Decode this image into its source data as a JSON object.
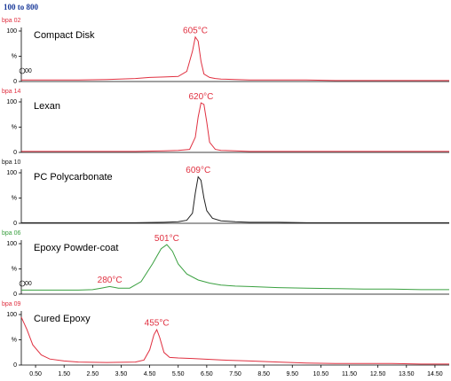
{
  "header": "100 to 800",
  "chart_data": [
    {
      "type": "line",
      "title": "Compact Disk",
      "subtitle": "bpa 02",
      "marker_label": "00",
      "x": [
        0,
        1,
        2,
        3,
        4,
        4.5,
        5,
        5.5,
        5.8,
        6.0,
        6.1,
        6.2,
        6.3,
        6.4,
        6.6,
        6.8,
        7,
        7.5,
        8,
        9,
        10,
        11,
        12,
        13,
        14,
        15
      ],
      "series": [
        {
          "color": "#e03040",
          "values": [
            3,
            3,
            3,
            4,
            6,
            8,
            9,
            10,
            20,
            60,
            88,
            80,
            40,
            15,
            8,
            6,
            5,
            4,
            3,
            3,
            3,
            2,
            2,
            2,
            2,
            2
          ]
        }
      ],
      "annotations": [
        {
          "text": "605°C",
          "x": 6.1,
          "y": 88
        }
      ],
      "xlim": [
        0,
        15
      ],
      "ylim": [
        0,
        100
      ],
      "yticks": [
        0,
        {
          "value": 50,
          "label": "%"
        },
        100
      ]
    },
    {
      "type": "line",
      "title": "Lexan",
      "subtitle": "bpa 14",
      "x": [
        0,
        1,
        2,
        3,
        4,
        5,
        5.5,
        5.9,
        6.1,
        6.2,
        6.3,
        6.4,
        6.5,
        6.6,
        6.8,
        7,
        7.5,
        8,
        9,
        10,
        11,
        12,
        13,
        14,
        15
      ],
      "series": [
        {
          "color": "#e03040",
          "values": [
            2,
            2,
            2,
            2,
            2,
            3,
            4,
            6,
            30,
            70,
            98,
            95,
            60,
            20,
            6,
            4,
            3,
            2,
            2,
            2,
            2,
            2,
            2,
            2,
            2
          ]
        }
      ],
      "annotations": [
        {
          "text": "620°C",
          "x": 6.3,
          "y": 98
        }
      ],
      "xlim": [
        0,
        15
      ],
      "ylim": [
        0,
        100
      ],
      "yticks": [
        0,
        {
          "value": 50,
          "label": "%"
        },
        100
      ]
    },
    {
      "type": "line",
      "title": "PC Polycarbonate",
      "subtitle": "bpa 10",
      "x": [
        0,
        1,
        2,
        3,
        4,
        5,
        5.5,
        5.8,
        6.0,
        6.1,
        6.2,
        6.3,
        6.4,
        6.5,
        6.7,
        7,
        7.5,
        8,
        9,
        10,
        11,
        12,
        13,
        14,
        15
      ],
      "series": [
        {
          "color": "#202020",
          "values": [
            1,
            1,
            1,
            1,
            1,
            2,
            3,
            6,
            20,
            60,
            92,
            85,
            50,
            25,
            10,
            5,
            3,
            2,
            2,
            1,
            1,
            1,
            1,
            1,
            1
          ]
        }
      ],
      "annotations": [
        {
          "text": "609°C",
          "x": 6.2,
          "y": 92
        }
      ],
      "xlim": [
        0,
        15
      ],
      "ylim": [
        0,
        100
      ],
      "yticks": [
        0,
        {
          "value": 50,
          "label": "%"
        },
        100
      ]
    },
    {
      "type": "line",
      "title": "Epoxy Powder-coat",
      "subtitle": "bpa 06",
      "marker_label": "00",
      "x": [
        0,
        1,
        2,
        2.5,
        2.8,
        3.1,
        3.4,
        3.8,
        4.2,
        4.6,
        4.9,
        5.1,
        5.3,
        5.5,
        5.8,
        6.2,
        6.6,
        7,
        7.5,
        8,
        9,
        10,
        11,
        12,
        13,
        14,
        15
      ],
      "series": [
        {
          "color": "#3aa040",
          "values": [
            8,
            8,
            8,
            9,
            12,
            15,
            12,
            12,
            25,
            60,
            90,
            98,
            85,
            60,
            40,
            28,
            22,
            18,
            16,
            15,
            13,
            12,
            11,
            10,
            10,
            9,
            9
          ]
        }
      ],
      "annotations": [
        {
          "text": "280°C",
          "x": 3.1,
          "y": 15
        },
        {
          "text": "501°C",
          "x": 5.1,
          "y": 98
        }
      ],
      "xlim": [
        0,
        15
      ],
      "ylim": [
        0,
        100
      ],
      "yticks": [
        0,
        {
          "value": 50,
          "label": "%"
        },
        100
      ]
    },
    {
      "type": "line",
      "title": "Cured Epoxy",
      "subtitle": "bpa 09",
      "x": [
        0,
        0.2,
        0.4,
        0.7,
        1,
        1.5,
        2,
        3,
        4,
        4.3,
        4.5,
        4.65,
        4.75,
        4.85,
        5,
        5.2,
        5.5,
        6,
        7,
        8,
        9,
        10,
        11,
        12,
        13,
        14,
        15
      ],
      "series": [
        {
          "color": "#e03040",
          "values": [
            95,
            70,
            40,
            20,
            12,
            8,
            6,
            5,
            6,
            10,
            30,
            60,
            70,
            55,
            25,
            15,
            14,
            13,
            10,
            8,
            6,
            4,
            3,
            3,
            3,
            2,
            2
          ]
        }
      ],
      "annotations": [
        {
          "text": "455°C",
          "x": 4.75,
          "y": 70
        }
      ],
      "xlim": [
        0,
        15
      ],
      "ylim": [
        0,
        100
      ],
      "yticks": [
        0,
        {
          "value": 50,
          "label": "%"
        },
        100
      ],
      "xticks": [
        {
          "value": 0.5,
          "label": "0.50"
        },
        {
          "value": 1.5,
          "label": "1.50"
        },
        {
          "value": 2.5,
          "label": "2.50"
        },
        {
          "value": 3.5,
          "label": "3.50"
        },
        {
          "value": 4.5,
          "label": "4.50"
        },
        {
          "value": 5.5,
          "label": "5.50"
        },
        {
          "value": 6.5,
          "label": "6.50"
        },
        {
          "value": 7.5,
          "label": "7.50"
        },
        {
          "value": 8.5,
          "label": "8.50"
        },
        {
          "value": 9.5,
          "label": "9.50"
        },
        {
          "value": 10.5,
          "label": "10.50"
        },
        {
          "value": 11.5,
          "label": "11.50"
        },
        {
          "value": 12.5,
          "label": "12.50"
        },
        {
          "value": 13.5,
          "label": "13.50"
        },
        {
          "value": 14.5,
          "label": "14.50"
        }
      ]
    }
  ]
}
